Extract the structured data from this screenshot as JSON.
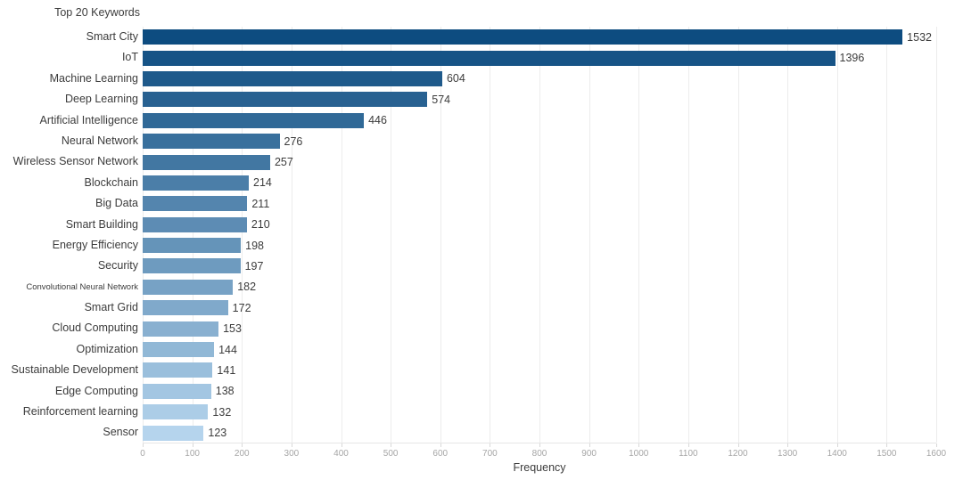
{
  "chart_data": {
    "type": "bar",
    "orientation": "horizontal",
    "title": "Top 20 Keywords",
    "xlabel": "Frequency",
    "categories": [
      "Smart City",
      "IoT",
      "Machine Learning",
      "Deep Learning",
      "Artificial Intelligence",
      "Neural Network",
      "Wireless Sensor Network",
      "Blockchain",
      "Big Data",
      "Smart Building",
      "Energy Efficiency",
      "Security",
      "Convolutional Neural Network",
      "Smart Grid",
      "Cloud Computing",
      "Optimization",
      "Sustainable Development",
      "Edge Computing",
      "Reinforcement learning",
      "Sensor"
    ],
    "values": [
      1532,
      1396,
      604,
      574,
      446,
      276,
      257,
      214,
      211,
      210,
      198,
      197,
      182,
      172,
      153,
      144,
      141,
      138,
      132,
      123
    ],
    "xlim": [
      0,
      1600
    ],
    "xticks": [
      0,
      100,
      200,
      300,
      400,
      500,
      600,
      700,
      800,
      900,
      1000,
      1100,
      1200,
      1300,
      1400,
      1500,
      1600
    ],
    "grid": "vertical",
    "legend": "none",
    "value_labels_shown": true,
    "bar_colors": [
      "#0d4c80",
      "#165386",
      "#1f5a8b",
      "#286191",
      "#306997",
      "#39709d",
      "#4277a2",
      "#4b7ea8",
      "#5485ae",
      "#5d8cb4",
      "#6594b9",
      "#6e9bbf",
      "#77a2c5",
      "#80a9cb",
      "#89b0d0",
      "#91b8d6",
      "#9abfdc",
      "#a3c6e2",
      "#accde7",
      "#b5d4ed"
    ],
    "colors": {
      "background": "#ffffff",
      "gridline": "#ececec",
      "tick_label": "#a6a6a6",
      "text": "#3c3c3c"
    }
  }
}
